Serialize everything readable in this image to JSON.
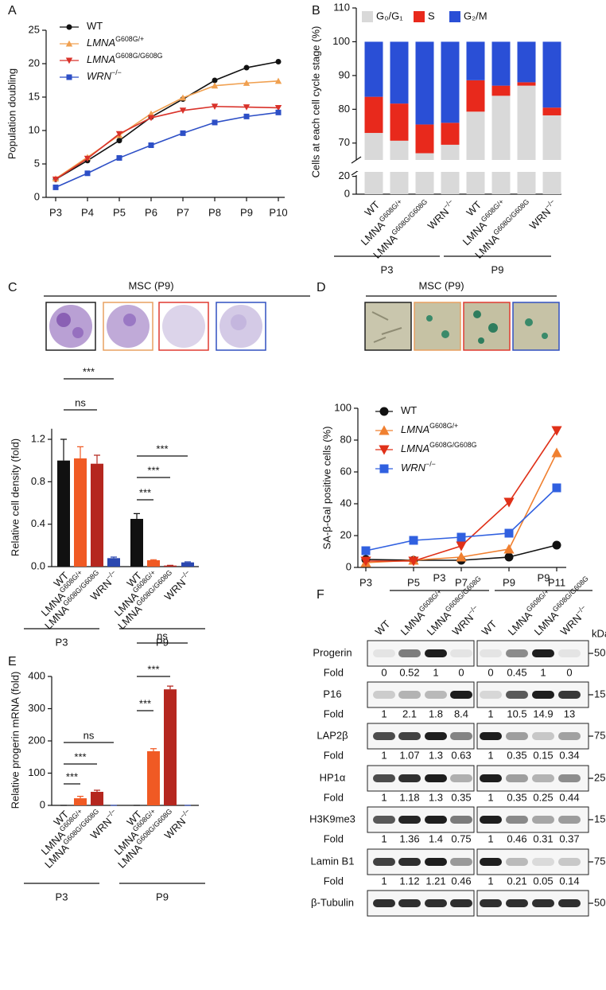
{
  "panel_labels": [
    "A",
    "B",
    "C",
    "D",
    "E",
    "F"
  ],
  "chart_data": [
    {
      "type": "line",
      "ylabel": "Population doubling",
      "categories": [
        "P3",
        "P4",
        "P5",
        "P6",
        "P7",
        "P8",
        "P9",
        "P10"
      ],
      "ylim": [
        0,
        25
      ],
      "yticks": [
        0,
        5,
        10,
        15,
        20,
        25
      ],
      "series": [
        {
          "name": "WT",
          "color": "#111111",
          "marker": "circle",
          "values": [
            2.7,
            5.5,
            8.5,
            12,
            14.7,
            17.5,
            19.4,
            20.3
          ]
        },
        {
          "name": "LMNA",
          "name_sup": "G608G/+",
          "name_italic": true,
          "color": "#f0a050",
          "marker": "triangle",
          "values": [
            2.8,
            6,
            9.3,
            12.5,
            14.9,
            16.7,
            17.1,
            17.4
          ]
        },
        {
          "name": "LMNA",
          "name_sup": "G608G/G608G",
          "name_italic": true,
          "color": "#d9322a",
          "marker": "triangle-down",
          "values": [
            2.7,
            5.8,
            9.5,
            11.9,
            13,
            13.6,
            13.5,
            13.4
          ]
        },
        {
          "name": "WRN",
          "name_sup": "−/−",
          "name_italic": true,
          "color": "#2d4fc6",
          "marker": "square",
          "values": [
            1.5,
            3.6,
            5.9,
            7.8,
            9.6,
            11.2,
            12.1,
            12.7
          ]
        }
      ]
    },
    {
      "type": "stacked-bar",
      "ylabel": "Cells at each cell cycle stage (%)",
      "categories": [
        "WT",
        "LMNA",
        "LMNA",
        "WRN",
        "WT",
        "LMNA",
        "LMNA",
        "WRN"
      ],
      "category_sups": [
        null,
        "G608G/+",
        "G608G/G608G",
        "−/−",
        null,
        "G608G/+",
        "G608G/G608G",
        "−/−"
      ],
      "groups": [
        "P3",
        "P9"
      ],
      "ylim": [
        0,
        110
      ],
      "y_segments": [
        [
          0,
          25
        ],
        [
          65,
          110
        ]
      ],
      "yticks": [
        0,
        20,
        70,
        80,
        90,
        100,
        110
      ],
      "series": [
        {
          "name": "G₀/G₁",
          "color": "#d9d9d9",
          "values": [
            73,
            70.7,
            67,
            69.5,
            79.3,
            84,
            87,
            78.2
          ]
        },
        {
          "name": "S",
          "color": "#e8291c",
          "values": [
            10.7,
            11,
            8.5,
            6.5,
            9.3,
            3,
            1,
            2.3
          ]
        },
        {
          "name": "G₂/M",
          "color": "#2a4fd6",
          "values": [
            16.3,
            18.3,
            24.5,
            24,
            11.4,
            13,
            12,
            19.5
          ]
        }
      ]
    },
    {
      "type": "bar",
      "title": "MSC (P9)",
      "ylabel": "Relative cell density (fold)",
      "categories": [
        "WT",
        "LMNA",
        "LMNA",
        "WRN",
        "WT",
        "LMNA",
        "LMNA",
        "WRN"
      ],
      "category_sups": [
        null,
        "G608G/+",
        "G608G/G608G",
        "−/−",
        null,
        "G608G/+",
        "G608G/G608G",
        "−/−"
      ],
      "groups": [
        "P3",
        "P9"
      ],
      "values": [
        1.0,
        1.02,
        0.97,
        0.08,
        0.45,
        0.06,
        0.01,
        0.04
      ],
      "errors": [
        0.2,
        0.11,
        0.08,
        0.01,
        0.05,
        0.005,
        0.002,
        0.005
      ],
      "colors": [
        "#111111",
        "#f05a24",
        "#b5271f",
        "#2b48b0",
        "#111111",
        "#f05a24",
        "#b5271f",
        "#2b48b0"
      ],
      "ylim": [
        0,
        1.3
      ],
      "yticks": [
        {
          "value": 0,
          "label": "0.0"
        },
        0.4,
        0.8,
        1.2
      ],
      "annotations": [
        "***",
        "ns",
        "***",
        "***",
        "***"
      ]
    },
    {
      "type": "line",
      "title": "MSC (P9)",
      "ylabel": "SA-β-Gal positive cells (%)",
      "categories": [
        "P3",
        "P5",
        "P7",
        "P9",
        "P11"
      ],
      "ylim": [
        0,
        100
      ],
      "yticks": [
        0,
        20,
        40,
        60,
        80,
        100
      ],
      "series": [
        {
          "name": "WT",
          "color": "#111111",
          "marker": "circle",
          "values": [
            5,
            4.5,
            4.5,
            6.5,
            14
          ]
        },
        {
          "name": "LMNA",
          "name_sup": "G608G/+",
          "name_italic": true,
          "color": "#f08030",
          "marker": "triangle",
          "values": [
            3,
            4.5,
            6.5,
            11.5,
            72
          ]
        },
        {
          "name": "LMNA",
          "name_sup": "G608G/G608G",
          "name_italic": true,
          "color": "#e03018",
          "marker": "triangle-down",
          "values": [
            4,
            4,
            13.5,
            41,
            86
          ]
        },
        {
          "name": "WRN",
          "name_sup": "−/−",
          "name_italic": true,
          "color": "#3060e0",
          "marker": "square",
          "values": [
            10.5,
            17,
            19,
            21.5,
            50
          ]
        }
      ]
    },
    {
      "type": "bar",
      "ylabel": "Relative progerin mRNA (fold)",
      "categories": [
        "WT",
        "LMNA",
        "LMNA",
        "WRN",
        "WT",
        "LMNA",
        "LMNA",
        "WRN"
      ],
      "category_sups": [
        null,
        "G608G/+",
        "G608G/G608G",
        "−/−",
        null,
        "G608G/+",
        "G608G/G608G",
        "−/−"
      ],
      "groups": [
        "P3",
        "P9"
      ],
      "values": [
        0,
        22,
        42,
        0,
        0,
        168,
        360,
        0
      ],
      "errors": [
        0,
        6,
        5,
        0,
        0,
        8,
        10,
        0
      ],
      "colors": [
        "#111111",
        "#f05a24",
        "#b5271f",
        "#2b48b0",
        "#111111",
        "#f05a24",
        "#b5271f",
        "#2b48b0"
      ],
      "ylim": [
        0,
        400
      ],
      "yticks": [
        0,
        100,
        200,
        300,
        400
      ],
      "annotations": [
        "***",
        "***",
        "ns",
        "***",
        "***",
        "ns"
      ]
    }
  ],
  "blot": {
    "groups": [
      "P3",
      "P9"
    ],
    "lanes": [
      "WT",
      "LMNA",
      "LMNA",
      "WRN"
    ],
    "lane_sups": [
      null,
      "G608G/+",
      "G608G/G608G",
      "−/−"
    ],
    "unit": "kDa",
    "fold_label": "Fold",
    "rows": [
      {
        "name": "Progerin",
        "kda": 50,
        "fold": [
          [
            0,
            0.52,
            1,
            0
          ],
          [
            0,
            0.45,
            1,
            0
          ]
        ]
      },
      {
        "name": "P16",
        "kda": 15,
        "fold": [
          [
            1,
            2.1,
            1.8,
            8.4
          ],
          [
            1,
            10.5,
            14.9,
            13
          ]
        ]
      },
      {
        "name": "LAP2β",
        "kda": 75,
        "fold": [
          [
            1,
            1.07,
            1.3,
            0.63
          ],
          [
            1,
            0.35,
            0.15,
            0.34
          ]
        ]
      },
      {
        "name": "HP1α",
        "kda": 25,
        "fold": [
          [
            1,
            1.18,
            1.3,
            0.35
          ],
          [
            1,
            0.35,
            0.25,
            0.44
          ]
        ]
      },
      {
        "name": "H3K9me3",
        "kda": 15,
        "fold": [
          [
            1,
            1.36,
            1.4,
            0.75
          ],
          [
            1,
            0.46,
            0.31,
            0.37
          ]
        ]
      },
      {
        "name": "Lamin B1",
        "kda": 75,
        "fold": [
          [
            1,
            1.12,
            1.21,
            0.46
          ],
          [
            1,
            0.21,
            0.05,
            0.14
          ]
        ]
      },
      {
        "name": "β-Tubulin",
        "kda": 50
      }
    ]
  }
}
